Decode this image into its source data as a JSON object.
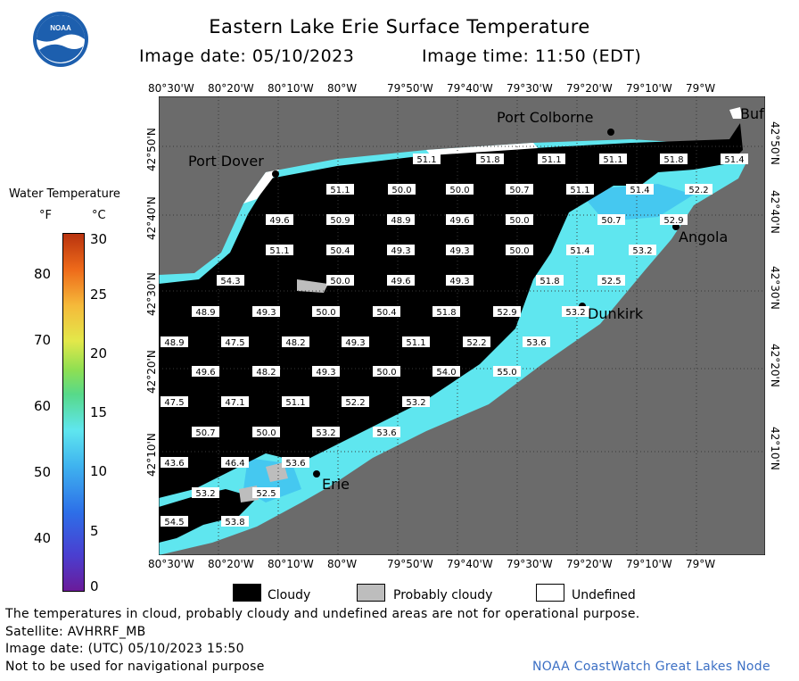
{
  "title": {
    "line1": "Eastern Lake Erie Surface Temperature",
    "date": "Image date: 05/10/2023",
    "time": "Image time: 11:50 (EDT)"
  },
  "logo": {
    "text": "NOAA"
  },
  "colorbar": {
    "title": "Water Temperature",
    "unit_f": "°F",
    "unit_c": "°C",
    "f_ticks": [
      "80",
      "70",
      "60",
      "50",
      "40"
    ],
    "c_ticks": [
      "30",
      "25",
      "20",
      "15",
      "10",
      "5",
      "0"
    ]
  },
  "axes": {
    "lon_labels": [
      "80°30'W",
      "80°20'W",
      "80°10'W",
      "80°W",
      "79°50'W",
      "79°40'W",
      "79°30'W",
      "79°20'W",
      "79°10'W",
      "79°W"
    ],
    "lat_labels": [
      "42°50'N",
      "42°40'N",
      "42°30'N",
      "42°20'N",
      "42°10'N"
    ]
  },
  "places": {
    "port_colborne": "Port Colborne",
    "port_dover": "Port Dover",
    "angola": "Angola",
    "dunkirk": "Dunkirk",
    "erie": "Erie",
    "buffalo": "Buf"
  },
  "temps": [
    {
      "t": "51.1"
    },
    {
      "t": "51.8"
    },
    {
      "t": "51.1"
    },
    {
      "t": "51.1"
    },
    {
      "t": "51.8"
    },
    {
      "t": "51.4"
    },
    {
      "t": "51.1"
    },
    {
      "t": "50.0"
    },
    {
      "t": "50.0"
    },
    {
      "t": "50.7"
    },
    {
      "t": "51.1"
    },
    {
      "t": "51.4"
    },
    {
      "t": "52.2"
    },
    {
      "t": "49.6"
    },
    {
      "t": "50.9"
    },
    {
      "t": "48.9"
    },
    {
      "t": "49.6"
    },
    {
      "t": "50.0"
    },
    {
      "t": "50.7"
    },
    {
      "t": "52.9"
    },
    {
      "t": "51.1"
    },
    {
      "t": "50.4"
    },
    {
      "t": "49.3"
    },
    {
      "t": "49.3"
    },
    {
      "t": "50.0"
    },
    {
      "t": "51.4"
    },
    {
      "t": "53.2"
    },
    {
      "t": "54.3"
    },
    {
      "t": "50.0"
    },
    {
      "t": "49.6"
    },
    {
      "t": "49.3"
    },
    {
      "t": "51.8"
    },
    {
      "t": "52.5"
    },
    {
      "t": "48.9"
    },
    {
      "t": "49.3"
    },
    {
      "t": "50.0"
    },
    {
      "t": "50.4"
    },
    {
      "t": "51.8"
    },
    {
      "t": "52.9"
    },
    {
      "t": "53.2"
    },
    {
      "t": "48.9"
    },
    {
      "t": "47.5"
    },
    {
      "t": "48.2"
    },
    {
      "t": "49.3"
    },
    {
      "t": "51.1"
    },
    {
      "t": "52.2"
    },
    {
      "t": "53.6"
    },
    {
      "t": "49.6"
    },
    {
      "t": "48.2"
    },
    {
      "t": "49.3"
    },
    {
      "t": "50.0"
    },
    {
      "t": "54.0"
    },
    {
      "t": "55.0"
    },
    {
      "t": "47.5"
    },
    {
      "t": "47.1"
    },
    {
      "t": "51.1"
    },
    {
      "t": "52.2"
    },
    {
      "t": "53.2"
    },
    {
      "t": "50.7"
    },
    {
      "t": "50.0"
    },
    {
      "t": "53.2"
    },
    {
      "t": "53.6"
    },
    {
      "t": "43.6"
    },
    {
      "t": "46.4"
    },
    {
      "t": "53.6"
    },
    {
      "t": "53.2"
    },
    {
      "t": "52.5"
    },
    {
      "t": "54.5"
    },
    {
      "t": "53.8"
    }
  ],
  "legend": {
    "cloudy": "Cloudy",
    "probably_cloudy": "Probably cloudy",
    "undefined": "Undefined"
  },
  "footer": {
    "line1": "The temperatures in cloud, probably cloudy and undefined areas are not for operational purpose.",
    "line2": "Satellite: AVHRRF_MB",
    "line3": "Image date: (UTC) 05/10/2023  15:50",
    "line4": "Not to be used for navigational purpose",
    "credit": "NOAA CoastWatch Great Lakes Node"
  },
  "colors": {
    "land": "#6b6b6b",
    "cloud": "#000000",
    "water_warm": "#5fe6ef",
    "water_cool": "#45c8f0",
    "credit": "#3b6fc4"
  }
}
